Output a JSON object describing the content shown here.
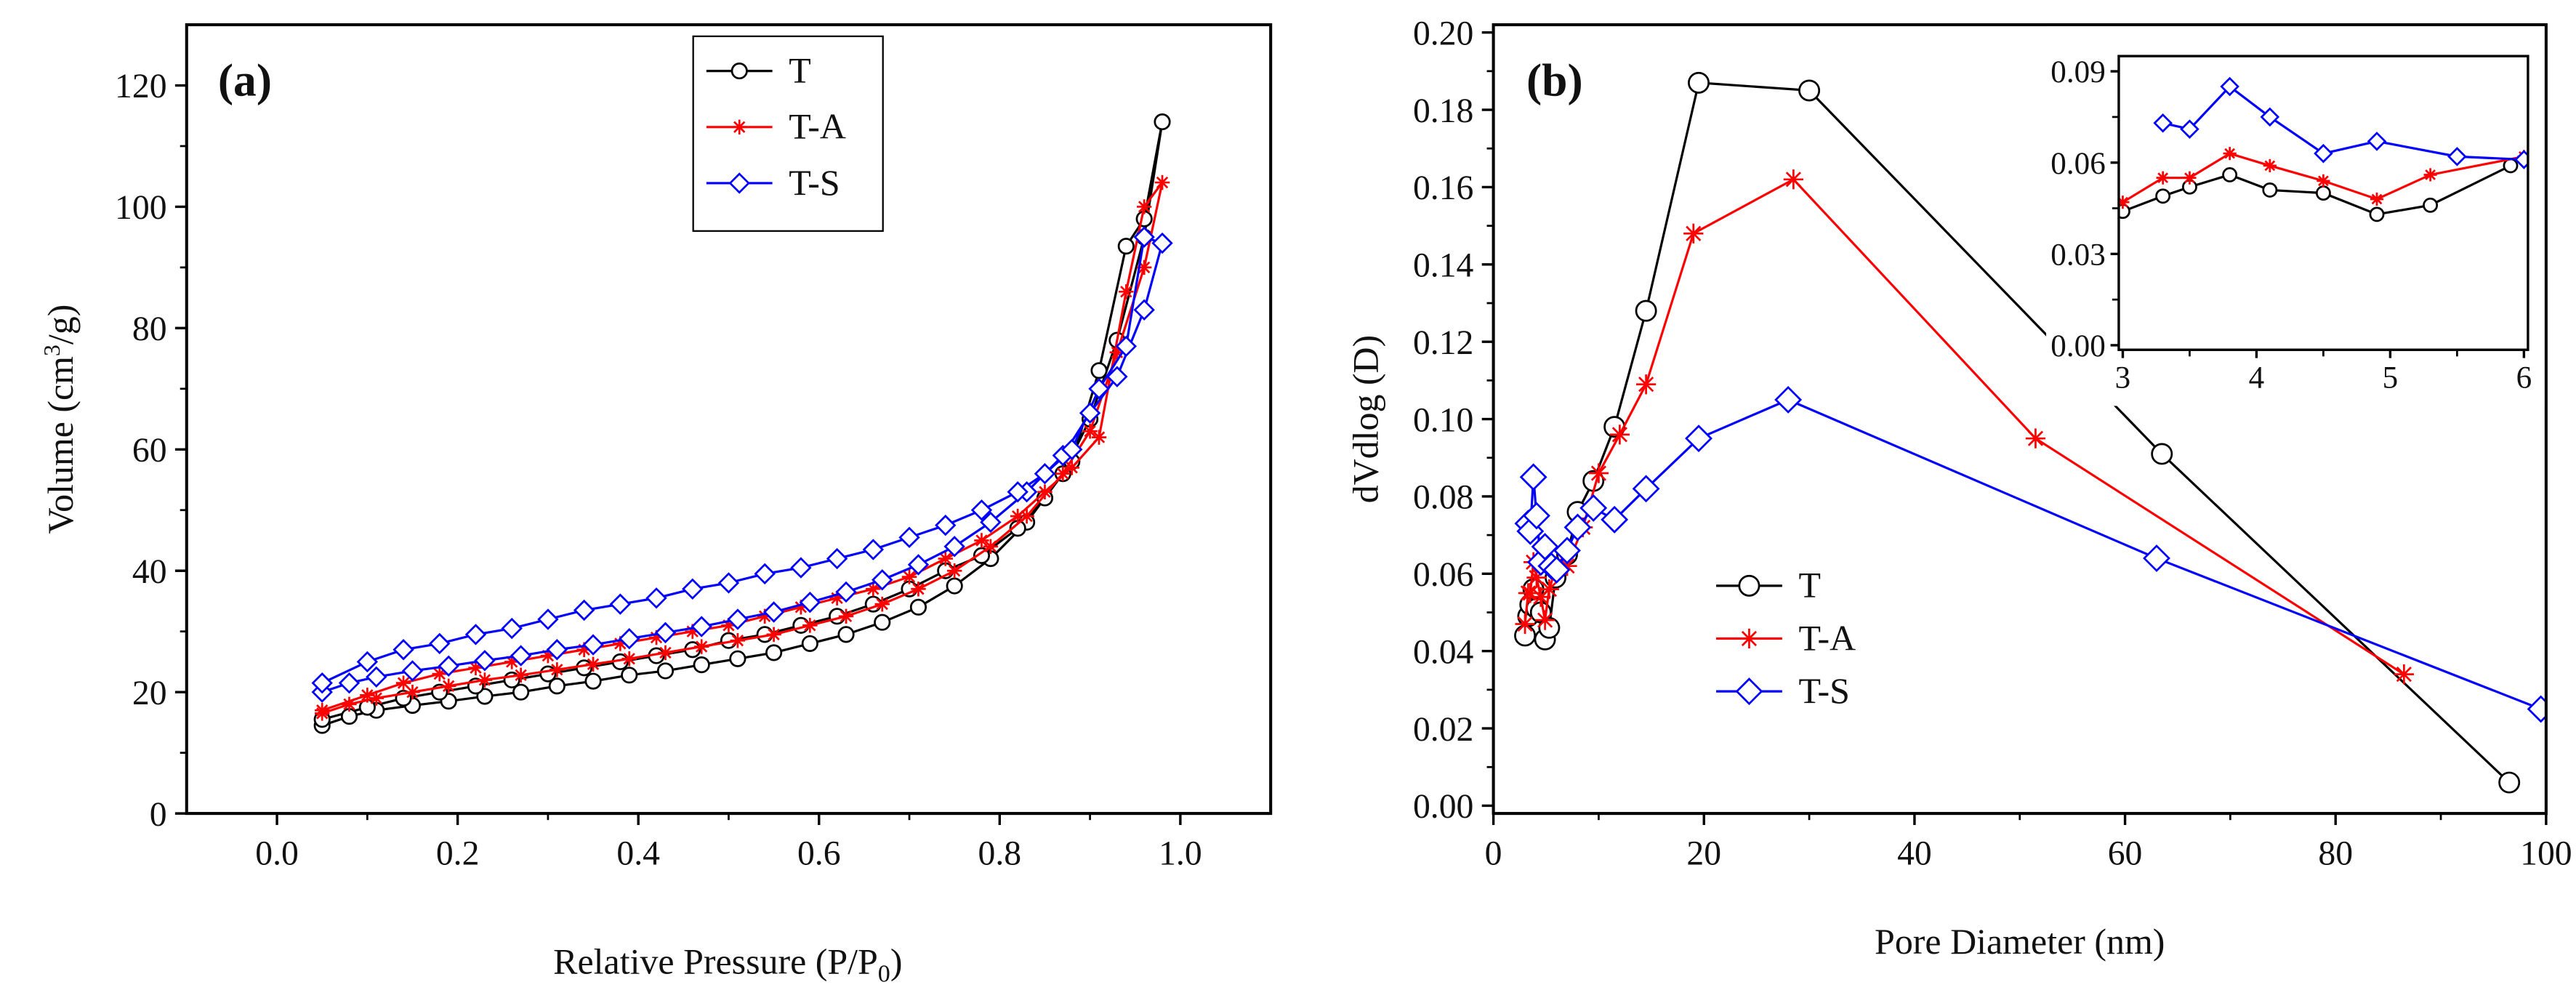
{
  "colors": {
    "T": "#000000",
    "T-A": "#ff0000",
    "T-S": "#0000ff",
    "axis": "#000000"
  },
  "chart_data": [
    {
      "type": "line",
      "panel_label": "(a)",
      "xlabel": "Relative Pressure (P/P",
      "xlabel_sub": "0",
      "xlabel_end": ")",
      "ylabel": "Volume (cm",
      "ylabel_sup": "3",
      "ylabel_end": "/g)",
      "xlim": [
        -0.1,
        1.1
      ],
      "ylim": [
        0,
        130
      ],
      "xticks": [
        "0.0",
        "0.2",
        "0.4",
        "0.6",
        "0.8",
        "1.0"
      ],
      "yticks": [
        "0",
        "20",
        "40",
        "60",
        "80",
        "100",
        "120"
      ],
      "legend": {
        "placement": "top-center",
        "entries": [
          "T",
          "T-A",
          "T-S"
        ]
      },
      "series": [
        {
          "name": "T",
          "marker": "circle",
          "x": [
            0.05,
            0.08,
            0.11,
            0.15,
            0.19,
            0.23,
            0.27,
            0.31,
            0.35,
            0.39,
            0.43,
            0.47,
            0.51,
            0.55,
            0.59,
            0.63,
            0.67,
            0.71,
            0.75,
            0.79,
            0.83,
            0.87,
            0.9,
            0.93,
            0.96,
            0.98,
            0.96,
            0.94,
            0.91,
            0.88,
            0.85,
            0.82,
            0.78,
            0.74,
            0.7,
            0.66,
            0.62,
            0.58,
            0.54,
            0.5,
            0.46,
            0.42,
            0.38,
            0.34,
            0.3,
            0.26,
            0.22,
            0.18,
            0.14,
            0.1,
            0.05
          ],
          "y": [
            14.5,
            16,
            17,
            17.8,
            18.5,
            19.3,
            20,
            21,
            21.8,
            22.8,
            23.5,
            24.5,
            25.5,
            26.5,
            28,
            29.5,
            31.5,
            34,
            37.5,
            42,
            48,
            56,
            65,
            78,
            95,
            114,
            98,
            93.5,
            73,
            58,
            52,
            47,
            42.5,
            40,
            37,
            34.5,
            32.5,
            31,
            29.5,
            28.5,
            27,
            26,
            25,
            24,
            23,
            22,
            21,
            20,
            19,
            17.5,
            15.5
          ]
        },
        {
          "name": "T-A",
          "marker": "asterisk",
          "x": [
            0.05,
            0.08,
            0.11,
            0.15,
            0.19,
            0.23,
            0.27,
            0.31,
            0.35,
            0.39,
            0.43,
            0.47,
            0.51,
            0.55,
            0.59,
            0.63,
            0.67,
            0.71,
            0.75,
            0.79,
            0.83,
            0.87,
            0.9,
            0.93,
            0.96,
            0.98,
            0.96,
            0.94,
            0.91,
            0.88,
            0.85,
            0.82,
            0.78,
            0.74,
            0.7,
            0.66,
            0.62,
            0.58,
            0.54,
            0.5,
            0.46,
            0.42,
            0.38,
            0.34,
            0.3,
            0.26,
            0.22,
            0.18,
            0.14,
            0.1,
            0.05
          ],
          "y": [
            16.5,
            18,
            19,
            20,
            21,
            22,
            22.8,
            23.7,
            24.6,
            25.5,
            26.5,
            27.5,
            28.5,
            29.5,
            31,
            32.5,
            34.5,
            37,
            40,
            44,
            49,
            56,
            63,
            76,
            90,
            104,
            100,
            86,
            62,
            57,
            53,
            49,
            45,
            42,
            39,
            37,
            35.5,
            34,
            32.5,
            31,
            30,
            29,
            28,
            27,
            26,
            25,
            24,
            23,
            21.5,
            19.5,
            17
          ]
        },
        {
          "name": "T-S",
          "marker": "diamond",
          "x": [
            0.05,
            0.08,
            0.11,
            0.15,
            0.19,
            0.23,
            0.27,
            0.31,
            0.35,
            0.39,
            0.43,
            0.47,
            0.51,
            0.55,
            0.59,
            0.63,
            0.67,
            0.71,
            0.75,
            0.79,
            0.83,
            0.87,
            0.9,
            0.93,
            0.96,
            0.98,
            0.96,
            0.94,
            0.91,
            0.88,
            0.85,
            0.82,
            0.78,
            0.74,
            0.7,
            0.66,
            0.62,
            0.58,
            0.54,
            0.5,
            0.46,
            0.42,
            0.38,
            0.34,
            0.3,
            0.26,
            0.22,
            0.18,
            0.14,
            0.1,
            0.05
          ],
          "y": [
            20,
            21.5,
            22.5,
            23.5,
            24.3,
            25.2,
            26,
            27,
            27.8,
            28.8,
            29.8,
            30.8,
            32,
            33.2,
            34.8,
            36.5,
            38.5,
            41,
            44,
            48,
            53,
            59,
            66,
            72,
            83,
            94,
            95,
            77,
            70,
            60,
            56,
            53,
            50,
            47.5,
            45.5,
            43.5,
            42,
            40.5,
            39.5,
            38,
            37,
            35.5,
            34.5,
            33.5,
            32,
            30.5,
            29.5,
            28,
            27,
            25,
            21.5
          ]
        }
      ]
    },
    {
      "type": "line",
      "panel_label": "(b)",
      "xlabel": "Pore Diameter (nm)",
      "ylabel": "dVdlog (D)",
      "xlim": [
        0,
        100
      ],
      "ylim": [
        -0.002,
        0.202
      ],
      "xticks": [
        "0",
        "20",
        "40",
        "60",
        "80",
        "100"
      ],
      "yticks": [
        "0.00",
        "0.02",
        "0.04",
        "0.06",
        "0.08",
        "0.10",
        "0.12",
        "0.14",
        "0.16",
        "0.18",
        "0.20"
      ],
      "legend": {
        "placement": "center-left",
        "entries": [
          "T",
          "T-A",
          "T-S"
        ]
      },
      "series": [
        {
          "name": "T",
          "marker": "circle",
          "x": [
            3,
            3.3,
            3.5,
            3.8,
            4.1,
            4.5,
            4.9,
            5.3,
            5.9,
            7,
            8,
            9.5,
            11.5,
            14.5,
            19.5,
            30,
            63.5,
            96.5
          ],
          "y": [
            0.044,
            0.049,
            0.052,
            0.056,
            0.051,
            0.05,
            0.043,
            0.046,
            0.059,
            0.065,
            0.076,
            0.084,
            0.098,
            0.128,
            0.187,
            0.185,
            0.091,
            0.006
          ]
        },
        {
          "name": "T-A",
          "marker": "asterisk",
          "x": [
            3,
            3.3,
            3.5,
            3.8,
            4.1,
            4.5,
            4.9,
            5.3,
            6,
            7,
            8.5,
            10,
            12,
            14.5,
            19,
            28.5,
            51.5,
            86.5
          ],
          "y": [
            0.047,
            0.055,
            0.055,
            0.063,
            0.059,
            0.054,
            0.048,
            0.056,
            0.062,
            0.062,
            0.072,
            0.086,
            0.096,
            0.109,
            0.148,
            0.162,
            0.095,
            0.034
          ]
        },
        {
          "name": "T-S",
          "marker": "diamond",
          "x": [
            3.3,
            3.5,
            3.8,
            4.1,
            4.5,
            4.9,
            5.5,
            6,
            7,
            8,
            9.5,
            11.5,
            14.5,
            19.5,
            28,
            63,
            99.5
          ],
          "y": [
            0.073,
            0.071,
            0.085,
            0.075,
            0.063,
            0.067,
            0.062,
            0.061,
            0.066,
            0.072,
            0.077,
            0.074,
            0.082,
            0.095,
            0.105,
            0.064,
            0.025
          ]
        }
      ],
      "inset": {
        "xlim": [
          3,
          6
        ],
        "ylim": [
          0,
          0.09
        ],
        "xticks": [
          "3",
          "4",
          "5",
          "6"
        ],
        "yticks": [
          "0.00",
          "0.03",
          "0.06",
          "0.09"
        ]
      }
    }
  ]
}
